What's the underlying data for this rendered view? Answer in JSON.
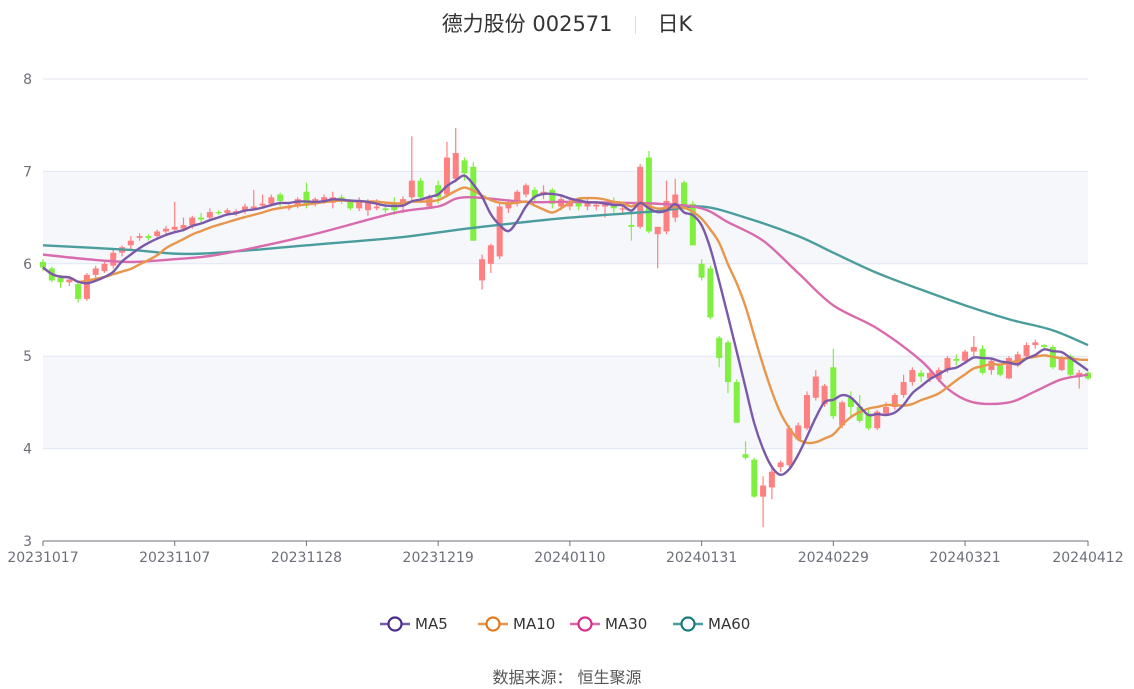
{
  "title": {
    "name": "德力股份 002571",
    "period": "日K"
  },
  "source": "数据来源：  恒生聚源",
  "chart_data": {
    "type": "candlestick",
    "ylim": [
      3,
      8
    ],
    "yticks": [
      3,
      4,
      5,
      6,
      7,
      8
    ],
    "xtick_labels": [
      "20231017",
      "20231107",
      "20231128",
      "20231219",
      "20240110",
      "20240131",
      "20240229",
      "20240321",
      "20240412"
    ],
    "colors": {
      "up": "#ff8080",
      "down": "#80f040",
      "MA5": "#7a5aa8",
      "MA10": "#e8964c",
      "MA30": "#d96aae",
      "MA60": "#4a9d9c",
      "MA5_marker": "#4b2a8a",
      "MA10_marker": "#e07b1f",
      "MA30_marker": "#d42e8a",
      "MA60_marker": "#1a7a7a"
    },
    "legend": [
      "MA5",
      "MA10",
      "MA30",
      "MA60"
    ],
    "legend_position": "bottom",
    "dates": [
      "20231017",
      "20231018",
      "20231019",
      "20231020",
      "20231023",
      "20231024",
      "20231025",
      "20231026",
      "20231027",
      "20231030",
      "20231031",
      "20231101",
      "20231102",
      "20231103",
      "20231106",
      "20231107",
      "20231108",
      "20231109",
      "20231110",
      "20231113",
      "20231114",
      "20231115",
      "20231116",
      "20231117",
      "20231120",
      "20231121",
      "20231122",
      "20231123",
      "20231124",
      "20231127",
      "20231128",
      "20231129",
      "20231130",
      "20231201",
      "20231204",
      "20231205",
      "20231206",
      "20231207",
      "20231208",
      "20231211",
      "20231212",
      "20231213",
      "20231214",
      "20231215",
      "20231218",
      "20231219",
      "20231220",
      "20231221",
      "20231222",
      "20231225",
      "20231226",
      "20231227",
      "20231228",
      "20231229",
      "20240102",
      "20240103",
      "20240104",
      "20240105",
      "20240108",
      "20240109",
      "20240110",
      "20240111",
      "20240112",
      "20240115",
      "20240116",
      "20240117",
      "20240118",
      "20240119",
      "20240122",
      "20240123",
      "20240124",
      "20240125",
      "20240126",
      "20240129",
      "20240130",
      "20240131",
      "20240201",
      "20240202",
      "20240205",
      "20240206",
      "20240207",
      "20240208",
      "20240219",
      "20240220",
      "20240221",
      "20240222",
      "20240223",
      "20240226",
      "20240227",
      "20240228",
      "20240229",
      "20240301",
      "20240304",
      "20240305",
      "20240306",
      "20240307",
      "20240308",
      "20240311",
      "20240312",
      "20240313",
      "20240314",
      "20240315",
      "20240318",
      "20240319",
      "20240320",
      "20240321",
      "20240322",
      "20240325",
      "20240326",
      "20240327",
      "20240328",
      "20240329",
      "20240401",
      "20240402",
      "20240403",
      "20240408",
      "20240409",
      "20240410",
      "20240411",
      "20240412"
    ],
    "ohlc_fields": [
      "open",
      "close",
      "low",
      "high"
    ],
    "ohlc": [
      [
        6.02,
        5.96,
        5.92,
        6.05
      ],
      [
        5.95,
        5.82,
        5.8,
        5.97
      ],
      [
        5.85,
        5.8,
        5.74,
        5.88
      ],
      [
        5.8,
        5.83,
        5.76,
        5.87
      ],
      [
        5.78,
        5.62,
        5.58,
        5.8
      ],
      [
        5.62,
        5.88,
        5.6,
        5.9
      ],
      [
        5.88,
        5.95,
        5.85,
        5.98
      ],
      [
        5.92,
        6.0,
        5.9,
        6.03
      ],
      [
        5.98,
        6.12,
        5.95,
        6.15
      ],
      [
        6.12,
        6.18,
        6.08,
        6.2
      ],
      [
        6.2,
        6.25,
        6.15,
        6.3
      ],
      [
        6.28,
        6.3,
        6.25,
        6.33
      ],
      [
        6.3,
        6.28,
        6.25,
        6.32
      ],
      [
        6.3,
        6.35,
        6.28,
        6.37
      ],
      [
        6.35,
        6.38,
        6.3,
        6.41
      ],
      [
        6.37,
        6.4,
        6.33,
        6.67
      ],
      [
        6.38,
        6.42,
        6.35,
        6.5
      ],
      [
        6.42,
        6.5,
        6.38,
        6.52
      ],
      [
        6.5,
        6.48,
        6.45,
        6.55
      ],
      [
        6.5,
        6.56,
        6.47,
        6.6
      ],
      [
        6.56,
        6.55,
        6.53,
        6.58
      ],
      [
        6.55,
        6.58,
        6.52,
        6.6
      ],
      [
        6.55,
        6.57,
        6.52,
        6.59
      ],
      [
        6.57,
        6.62,
        6.54,
        6.65
      ],
      [
        6.6,
        6.62,
        6.58,
        6.8
      ],
      [
        6.63,
        6.65,
        6.6,
        6.75
      ],
      [
        6.65,
        6.72,
        6.62,
        6.75
      ],
      [
        6.75,
        6.68,
        6.62,
        6.77
      ],
      [
        6.6,
        6.62,
        6.58,
        6.64
      ],
      [
        6.62,
        6.7,
        6.6,
        6.72
      ],
      [
        6.78,
        6.65,
        6.6,
        6.88
      ],
      [
        6.65,
        6.7,
        6.62,
        6.72
      ],
      [
        6.68,
        6.72,
        6.65,
        6.75
      ],
      [
        6.66,
        6.72,
        6.6,
        6.78
      ],
      [
        6.72,
        6.68,
        6.65,
        6.75
      ],
      [
        6.68,
        6.6,
        6.58,
        6.7
      ],
      [
        6.6,
        6.68,
        6.57,
        6.72
      ],
      [
        6.58,
        6.67,
        6.52,
        6.7
      ],
      [
        6.6,
        6.62,
        6.58,
        6.7
      ],
      [
        6.6,
        6.58,
        6.55,
        6.65
      ],
      [
        6.65,
        6.58,
        6.53,
        6.72
      ],
      [
        6.63,
        6.7,
        6.55,
        6.73
      ],
      [
        6.72,
        6.9,
        6.68,
        7.38
      ],
      [
        6.9,
        6.72,
        6.68,
        6.93
      ],
      [
        6.62,
        6.72,
        6.6,
        6.75
      ],
      [
        6.85,
        6.72,
        6.65,
        6.9
      ],
      [
        6.75,
        7.15,
        6.72,
        7.32
      ],
      [
        6.92,
        7.2,
        6.88,
        7.47
      ],
      [
        7.12,
        6.98,
        6.9,
        7.15
      ],
      [
        7.05,
        6.25,
        6.25,
        7.1
      ],
      [
        5.82,
        6.05,
        5.72,
        6.1
      ],
      [
        6.0,
        6.2,
        5.9,
        6.22
      ],
      [
        6.08,
        6.62,
        6.05,
        6.65
      ],
      [
        6.6,
        6.65,
        6.55,
        6.7
      ],
      [
        6.68,
        6.78,
        6.62,
        6.8
      ],
      [
        6.75,
        6.85,
        6.72,
        6.87
      ],
      [
        6.8,
        6.72,
        6.68,
        6.83
      ],
      [
        6.75,
        6.78,
        6.7,
        6.85
      ],
      [
        6.8,
        6.65,
        6.6,
        6.82
      ],
      [
        6.62,
        6.7,
        6.58,
        6.74
      ],
      [
        6.62,
        6.68,
        6.58,
        6.72
      ],
      [
        6.7,
        6.62,
        6.58,
        6.72
      ],
      [
        6.62,
        6.68,
        6.58,
        6.72
      ],
      [
        6.62,
        6.64,
        6.58,
        6.66
      ],
      [
        6.62,
        6.64,
        6.5,
        6.66
      ],
      [
        6.64,
        6.6,
        6.55,
        6.72
      ],
      [
        6.6,
        6.6,
        6.55,
        6.62
      ],
      [
        6.42,
        6.4,
        6.25,
        6.55
      ],
      [
        6.4,
        7.05,
        6.38,
        7.08
      ],
      [
        7.15,
        6.35,
        6.33,
        7.22
      ],
      [
        6.32,
        6.4,
        5.95,
        6.4
      ],
      [
        6.35,
        6.68,
        6.32,
        6.9
      ],
      [
        6.5,
        6.75,
        6.45,
        6.92
      ],
      [
        6.88,
        6.6,
        6.58,
        6.9
      ],
      [
        6.65,
        6.2,
        6.2,
        6.68
      ],
      [
        6.0,
        5.85,
        5.82,
        6.05
      ],
      [
        5.95,
        5.42,
        5.4,
        5.98
      ],
      [
        5.2,
        4.98,
        4.88,
        5.22
      ],
      [
        5.15,
        4.72,
        4.6,
        5.17
      ],
      [
        4.72,
        4.28,
        4.28,
        4.75
      ],
      [
        3.94,
        3.9,
        3.88,
        4.08
      ],
      [
        3.88,
        3.48,
        3.47,
        3.9
      ],
      [
        3.48,
        3.6,
        3.15,
        3.7
      ],
      [
        3.58,
        3.75,
        3.45,
        3.8
      ],
      [
        3.8,
        3.85,
        3.75,
        3.87
      ],
      [
        3.82,
        4.22,
        3.8,
        4.25
      ],
      [
        4.1,
        4.25,
        4.08,
        4.28
      ],
      [
        4.22,
        4.58,
        4.2,
        4.62
      ],
      [
        4.55,
        4.78,
        4.52,
        4.85
      ],
      [
        4.48,
        4.68,
        4.45,
        4.7
      ],
      [
        4.88,
        4.35,
        4.32,
        5.08
      ],
      [
        4.25,
        4.5,
        4.22,
        4.52
      ],
      [
        4.55,
        4.45,
        4.35,
        4.62
      ],
      [
        4.45,
        4.3,
        4.28,
        4.58
      ],
      [
        4.38,
        4.22,
        4.2,
        4.42
      ],
      [
        4.22,
        4.4,
        4.2,
        4.42
      ],
      [
        4.38,
        4.45,
        4.35,
        4.5
      ],
      [
        4.45,
        4.58,
        4.42,
        4.6
      ],
      [
        4.58,
        4.72,
        4.55,
        4.8
      ],
      [
        4.72,
        4.85,
        4.68,
        4.88
      ],
      [
        4.82,
        4.78,
        4.72,
        4.85
      ],
      [
        4.76,
        4.82,
        4.72,
        4.86
      ],
      [
        4.75,
        4.85,
        4.72,
        4.88
      ],
      [
        4.85,
        4.98,
        4.82,
        5.0
      ],
      [
        4.97,
        4.95,
        4.9,
        5.02
      ],
      [
        4.95,
        5.05,
        4.92,
        5.07
      ],
      [
        5.05,
        5.1,
        5.0,
        5.22
      ],
      [
        5.08,
        4.82,
        4.8,
        5.12
      ],
      [
        4.85,
        4.95,
        4.8,
        4.97
      ],
      [
        4.9,
        4.8,
        4.78,
        4.92
      ],
      [
        4.76,
        4.98,
        4.75,
        5.0
      ],
      [
        4.9,
        5.02,
        4.88,
        5.05
      ],
      [
        5.0,
        5.12,
        4.98,
        5.15
      ],
      [
        5.12,
        5.15,
        5.08,
        5.18
      ],
      [
        5.12,
        5.1,
        5.08,
        5.13
      ],
      [
        5.1,
        4.88,
        4.86,
        5.12
      ],
      [
        4.85,
        4.97,
        4.84,
        5.0
      ],
      [
        5.0,
        4.8,
        4.78,
        5.02
      ],
      [
        4.78,
        4.82,
        4.65,
        4.85
      ],
      [
        4.82,
        4.76,
        4.74,
        4.84
      ]
    ],
    "ma30_points": [
      [
        "20231017",
        6.1
      ],
      [
        "20231024",
        6.05
      ],
      [
        "20231031",
        6.02
      ],
      [
        "20231107",
        6.05
      ],
      [
        "20231114",
        6.1
      ],
      [
        "20231128",
        6.3
      ],
      [
        "20231212",
        6.55
      ],
      [
        "20231219",
        6.62
      ],
      [
        "20231222",
        6.72
      ],
      [
        "20240103",
        6.67
      ],
      [
        "20240110",
        6.67
      ],
      [
        "20240124",
        6.65
      ],
      [
        "20240131",
        6.6
      ],
      [
        "20240205",
        6.45
      ],
      [
        "20240219",
        6.25
      ],
      [
        "20240223",
        5.9
      ],
      [
        "20240229",
        5.55
      ],
      [
        "20240307",
        5.3
      ],
      [
        "20240314",
        4.95
      ],
      [
        "20240319",
        4.65
      ],
      [
        "20240322",
        4.5
      ],
      [
        "20240328",
        4.5
      ],
      [
        "20240402",
        4.62
      ],
      [
        "20240409",
        4.75
      ],
      [
        "20240412",
        4.8
      ]
    ],
    "ma60_points": [
      [
        "20231017",
        6.2
      ],
      [
        "20231031",
        6.15
      ],
      [
        "20231107",
        6.11
      ],
      [
        "20231114",
        6.12
      ],
      [
        "20231128",
        6.2
      ],
      [
        "20231212",
        6.28
      ],
      [
        "20231219",
        6.34
      ],
      [
        "20231226",
        6.4
      ],
      [
        "20240110",
        6.5
      ],
      [
        "20240124",
        6.57
      ],
      [
        "20240131",
        6.62
      ],
      [
        "20240207",
        6.5
      ],
      [
        "20240223",
        6.3
      ],
      [
        "20240229",
        6.12
      ],
      [
        "20240307",
        5.9
      ],
      [
        "20240314",
        5.72
      ],
      [
        "20240321",
        5.55
      ],
      [
        "20240328",
        5.4
      ],
      [
        "20240408",
        5.28
      ],
      [
        "20240412",
        5.12
      ]
    ]
  }
}
